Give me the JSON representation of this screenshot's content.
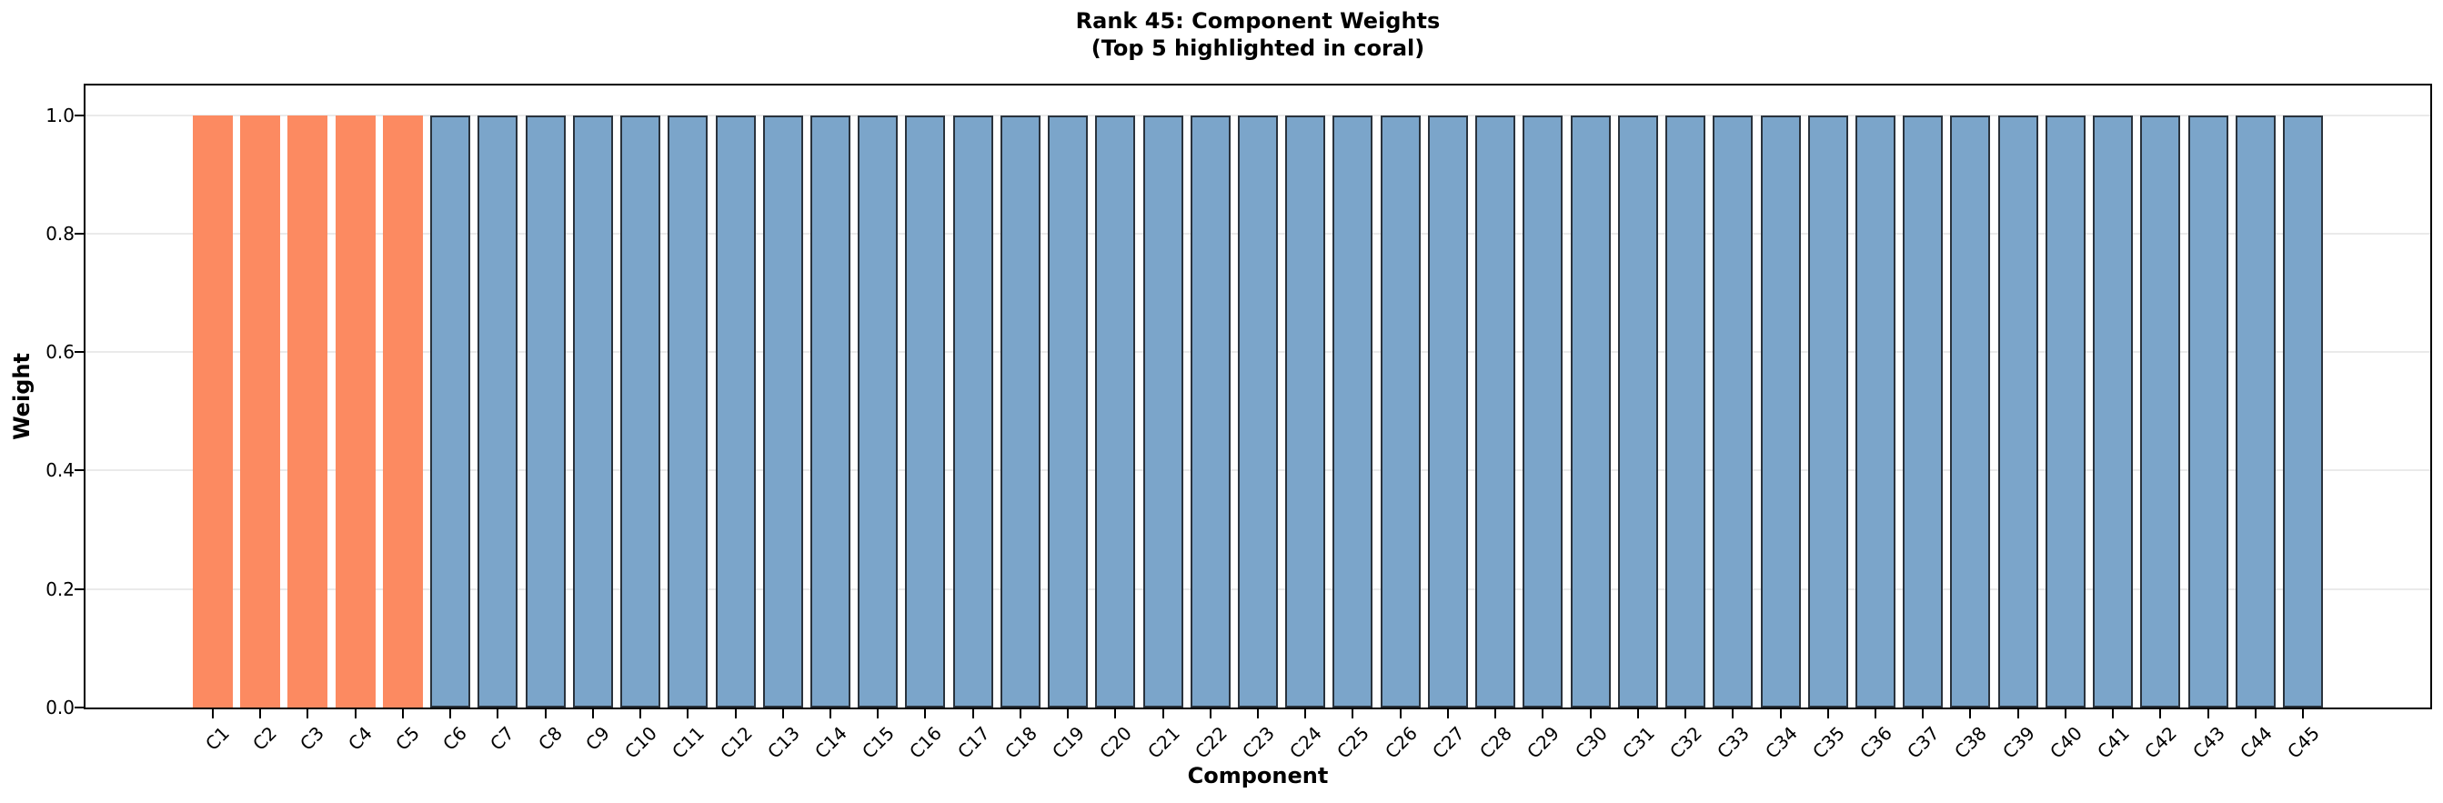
{
  "chart_data": {
    "type": "bar",
    "title": "Rank 45: Component Weights",
    "subtitle": "(Top 5 highlighted in coral)",
    "xlabel": "Component",
    "ylabel": "Weight",
    "categories": [
      "C1",
      "C2",
      "C3",
      "C4",
      "C5",
      "C6",
      "C7",
      "C8",
      "C9",
      "C10",
      "C11",
      "C12",
      "C13",
      "C14",
      "C15",
      "C16",
      "C17",
      "C18",
      "C19",
      "C20",
      "C21",
      "C22",
      "C23",
      "C24",
      "C25",
      "C26",
      "C27",
      "C28",
      "C29",
      "C30",
      "C31",
      "C32",
      "C33",
      "C34",
      "C35",
      "C36",
      "C37",
      "C38",
      "C39",
      "C40",
      "C41",
      "C42",
      "C43",
      "C44",
      "C45"
    ],
    "values": [
      1.0,
      1.0,
      1.0,
      1.0,
      1.0,
      1.0,
      1.0,
      1.0,
      1.0,
      1.0,
      1.0,
      1.0,
      1.0,
      1.0,
      1.0,
      1.0,
      1.0,
      1.0,
      1.0,
      1.0,
      1.0,
      1.0,
      1.0,
      1.0,
      1.0,
      1.0,
      1.0,
      1.0,
      1.0,
      1.0,
      1.0,
      1.0,
      1.0,
      1.0,
      1.0,
      1.0,
      1.0,
      1.0,
      1.0,
      1.0,
      1.0,
      1.0,
      1.0,
      1.0,
      1.0
    ],
    "highlight": {
      "count": 5,
      "description": "Top 5 highlighted in coral"
    },
    "colors": {
      "highlight_bar": "#FC8A61",
      "bar": "#7BA5CA",
      "bar_edge": "#2A333D",
      "grid": "#EAEAEA",
      "axis": "#000000",
      "background": "#FFFFFF"
    },
    "ytick_labels": [
      "0.0",
      "0.2",
      "0.4",
      "0.6",
      "0.8",
      "1.0"
    ],
    "ytick_values": [
      0.0,
      0.2,
      0.4,
      0.6,
      0.8,
      1.0
    ],
    "ylim": [
      0,
      1.05
    ],
    "grid": true,
    "legend": "none"
  }
}
